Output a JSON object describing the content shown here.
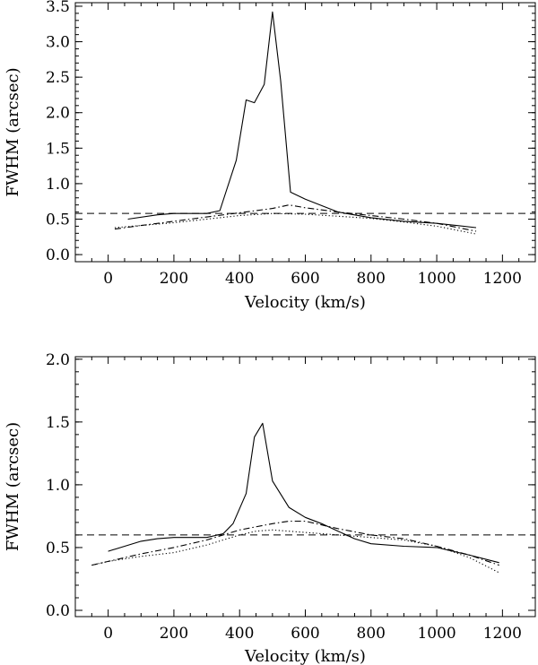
{
  "chart_data": [
    {
      "type": "line",
      "xlabel": "Velocity (km/s)",
      "ylabel": "FWHM (arcsec)",
      "xlim": [
        -100,
        1300
      ],
      "ylim": [
        -0.1,
        3.55
      ],
      "xticks": [
        0,
        200,
        400,
        600,
        800,
        1000,
        1200
      ],
      "xtick_labels": [
        "0",
        "200",
        "400",
        "600",
        "800",
        "1000",
        "1200"
      ],
      "yticks": [
        0.0,
        0.5,
        1.0,
        1.5,
        2.0,
        2.5,
        3.0,
        3.5
      ],
      "ytick_labels": [
        "0.0",
        "0.5",
        "1.0",
        "1.5",
        "2.0",
        "2.5",
        "3.0",
        "3.5"
      ],
      "hline": 0.58,
      "series": [
        {
          "name": "solid",
          "style": "solid",
          "x": [
            60,
            150,
            200,
            250,
            300,
            340,
            390,
            420,
            445,
            475,
            500,
            525,
            555,
            600,
            700,
            800,
            900,
            1000,
            1120
          ],
          "y": [
            0.5,
            0.56,
            0.58,
            0.58,
            0.58,
            0.62,
            1.33,
            2.18,
            2.14,
            2.4,
            3.42,
            2.45,
            0.88,
            0.78,
            0.6,
            0.52,
            0.47,
            0.44,
            0.38
          ]
        },
        {
          "name": "dash-dot",
          "style": "dashdot",
          "x": [
            20,
            100,
            200,
            300,
            400,
            500,
            550,
            600,
            700,
            800,
            900,
            1000,
            1120
          ],
          "y": [
            0.36,
            0.41,
            0.47,
            0.53,
            0.59,
            0.65,
            0.7,
            0.66,
            0.6,
            0.55,
            0.5,
            0.44,
            0.33
          ]
        },
        {
          "name": "dotted",
          "style": "dotted",
          "x": [
            20,
            100,
            200,
            300,
            400,
            500,
            600,
            700,
            800,
            900,
            1000,
            1120
          ],
          "y": [
            0.38,
            0.41,
            0.45,
            0.5,
            0.55,
            0.58,
            0.57,
            0.54,
            0.51,
            0.46,
            0.4,
            0.29
          ]
        }
      ]
    },
    {
      "type": "line",
      "xlabel": "Velocity (km/s)",
      "ylabel": "FWHM (arcsec)",
      "xlim": [
        -100,
        1300
      ],
      "ylim": [
        -0.05,
        2.02
      ],
      "xticks": [
        0,
        200,
        400,
        600,
        800,
        1000,
        1200
      ],
      "xtick_labels": [
        "0",
        "200",
        "400",
        "600",
        "800",
        "1000",
        "1200"
      ],
      "yticks": [
        0.0,
        0.5,
        1.0,
        1.5,
        2.0
      ],
      "ytick_labels": [
        "0.0",
        "0.5",
        "1.0",
        "1.5",
        "2.0"
      ],
      "hline": 0.6,
      "series": [
        {
          "name": "solid",
          "style": "solid",
          "x": [
            0,
            50,
            100,
            150,
            200,
            250,
            300,
            350,
            380,
            420,
            445,
            470,
            500,
            550,
            600,
            650,
            700,
            750,
            800,
            900,
            1000,
            1100,
            1190
          ],
          "y": [
            0.47,
            0.51,
            0.55,
            0.57,
            0.58,
            0.58,
            0.58,
            0.61,
            0.69,
            0.93,
            1.38,
            1.49,
            1.03,
            0.82,
            0.74,
            0.69,
            0.63,
            0.57,
            0.53,
            0.51,
            0.5,
            0.44,
            0.38
          ]
        },
        {
          "name": "dash-dot",
          "style": "dashdot",
          "x": [
            -50,
            0,
            100,
            200,
            300,
            400,
            500,
            550,
            600,
            700,
            800,
            900,
            1000,
            1100,
            1190
          ],
          "y": [
            0.36,
            0.39,
            0.45,
            0.5,
            0.56,
            0.64,
            0.69,
            0.71,
            0.71,
            0.65,
            0.6,
            0.57,
            0.51,
            0.44,
            0.36
          ]
        },
        {
          "name": "dotted",
          "style": "dotted",
          "x": [
            -50,
            0,
            100,
            200,
            300,
            400,
            450,
            500,
            550,
            600,
            700,
            800,
            900,
            1000,
            1100,
            1190
          ],
          "y": [
            0.36,
            0.39,
            0.43,
            0.46,
            0.52,
            0.6,
            0.63,
            0.64,
            0.63,
            0.62,
            0.6,
            0.58,
            0.56,
            0.51,
            0.42,
            0.3
          ]
        }
      ]
    }
  ]
}
